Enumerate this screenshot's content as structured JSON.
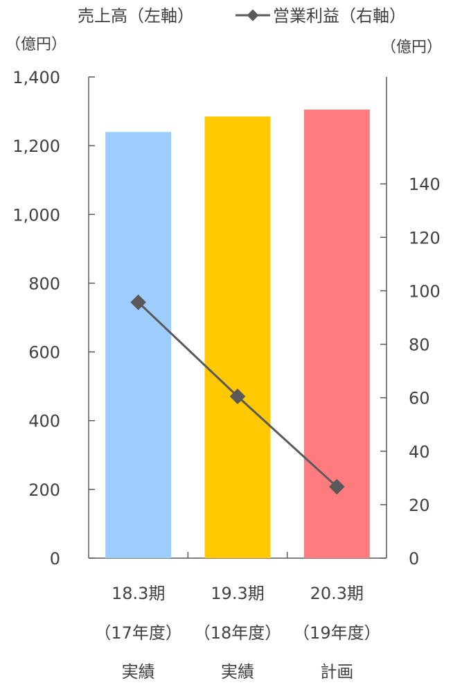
{
  "chart_data": {
    "type": "bar",
    "legend": {
      "position": "top",
      "items": [
        "売上高（左軸）",
        "営業利益（右軸）"
      ]
    },
    "left_axis": {
      "unit": "（億円）",
      "range": [
        0,
        1400
      ],
      "ticks": [
        "0",
        "200",
        "400",
        "600",
        "800",
        "1,000",
        "1,200",
        "1,400"
      ],
      "tick_values": [
        0,
        200,
        400,
        600,
        800,
        1000,
        1200,
        1400
      ]
    },
    "right_axis": {
      "unit": "（億円）",
      "range": [
        0,
        180
      ],
      "ticks": [
        "0",
        "20",
        "40",
        "60",
        "80",
        "100",
        "120",
        "140"
      ],
      "tick_values": [
        0,
        20,
        40,
        60,
        80,
        100,
        120,
        140
      ]
    },
    "categories": [
      [
        "18.3期",
        "（17年度）",
        "実績"
      ],
      [
        "19.3期",
        "（18年度）",
        "実績"
      ],
      [
        "20.3期",
        "（19年度）",
        "計画"
      ]
    ],
    "series": [
      {
        "name": "売上高（左軸）",
        "type": "bar",
        "axis": "left",
        "values": [
          1240,
          1285,
          1305
        ],
        "colors": [
          "#9dcdfd",
          "#ffc800",
          "#ff7b7e"
        ]
      },
      {
        "name": "営業利益（右軸）",
        "type": "line",
        "axis": "right",
        "marker": "diamond",
        "color": "#595959",
        "values": [
          95.7,
          60.5,
          26.7
        ]
      }
    ],
    "grid": false
  }
}
